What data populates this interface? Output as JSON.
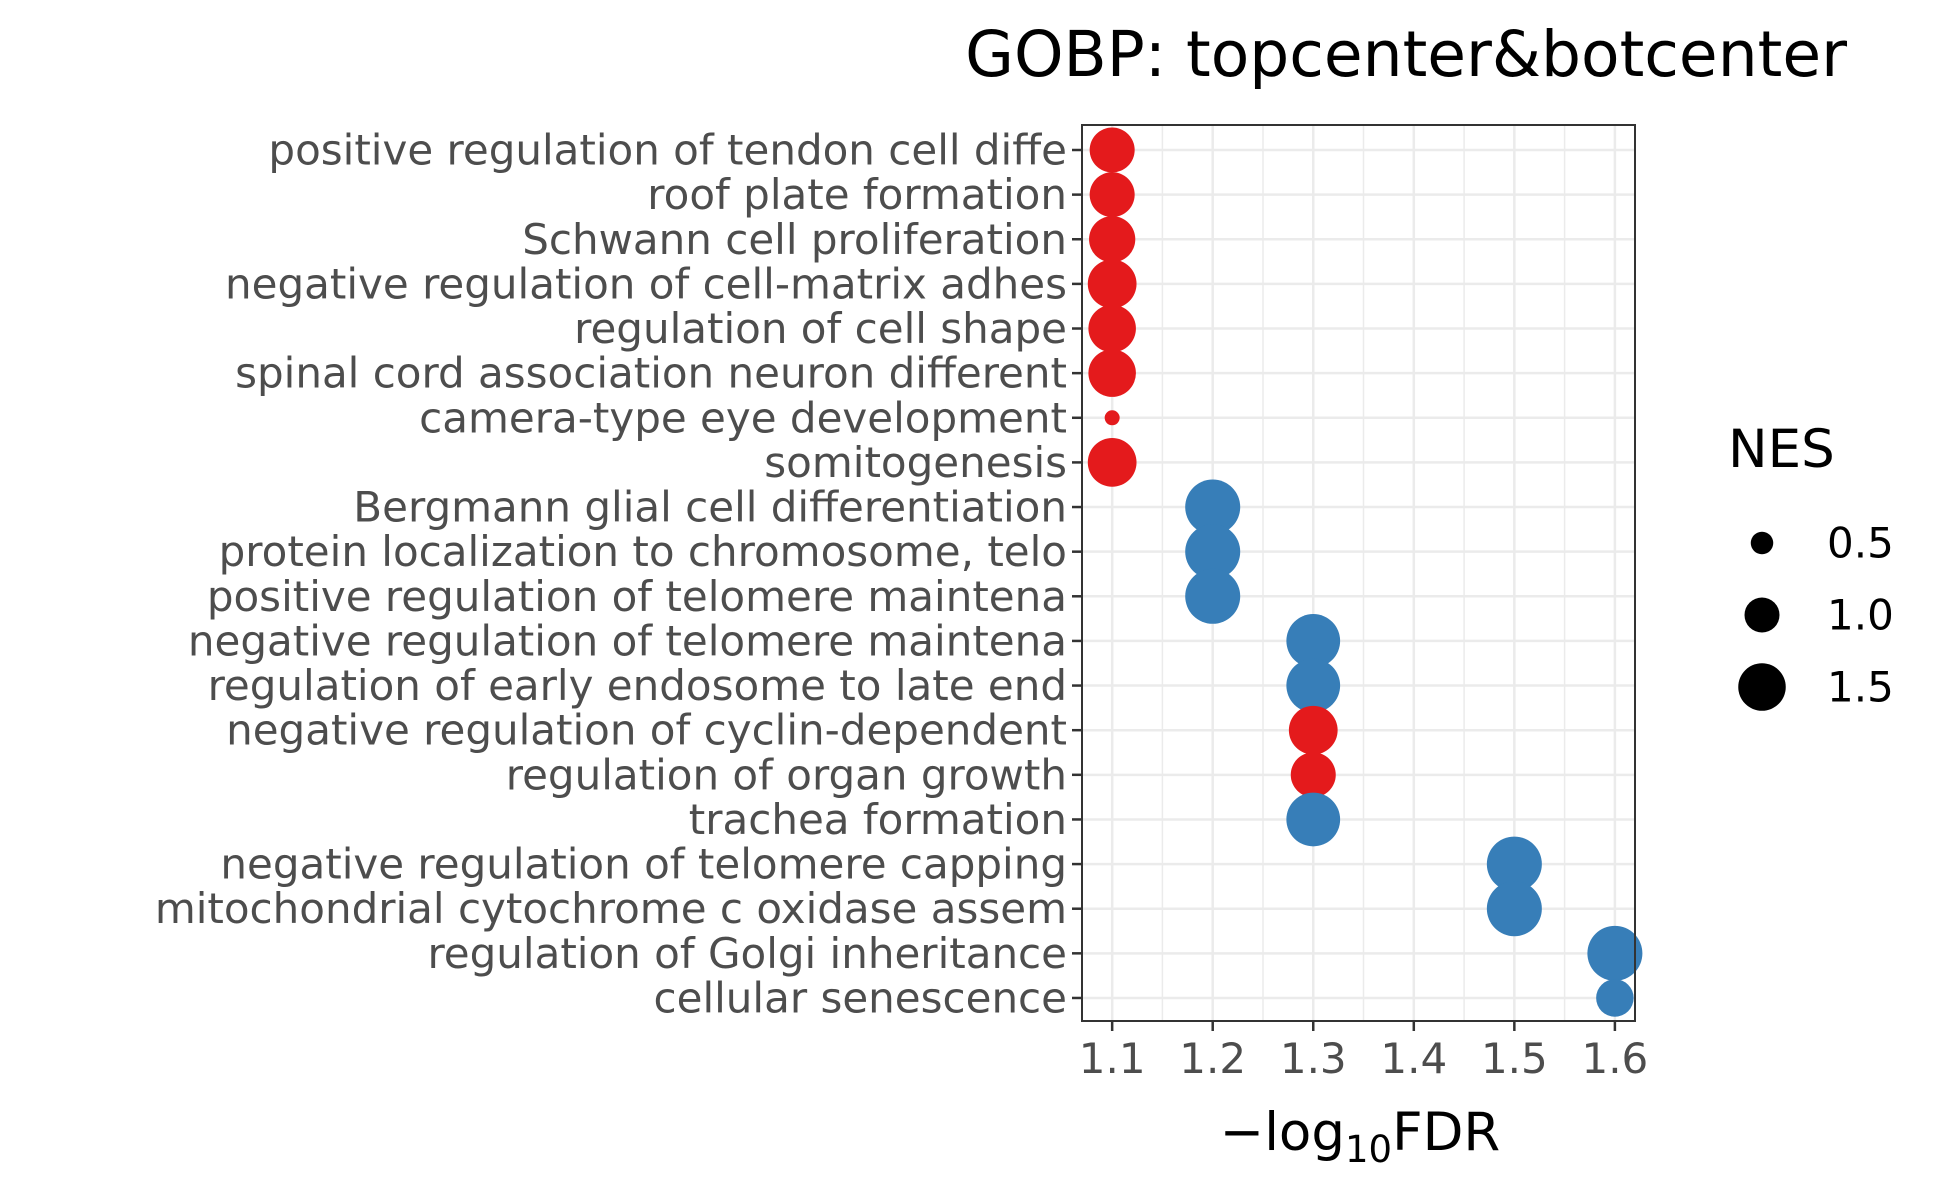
{
  "chart_data": {
    "type": "scatter",
    "title": "GOBP: topcenter&botcenter",
    "xlabel": {
      "prefix": "−log",
      "subscript": "10",
      "suffix": "FDR"
    },
    "ylabel": "",
    "xlim": [
      1.07,
      1.62
    ],
    "x_ticks": [
      "1.1",
      "1.2",
      "1.3",
      "1.4",
      "1.5",
      "1.6"
    ],
    "x_tick_values": [
      1.1,
      1.2,
      1.3,
      1.4,
      1.5,
      1.6
    ],
    "grid": true,
    "legend": {
      "title": "NES",
      "placement": "right",
      "entries": [
        {
          "label": "0.5",
          "nes": 0.5
        },
        {
          "label": "1.0",
          "nes": 1.0
        },
        {
          "label": "1.5",
          "nes": 1.5
        }
      ]
    },
    "colors": {
      "up": "#e41a1c",
      "down": "#377eb8"
    },
    "categories": [
      "positive regulation of tendon cell diffe",
      "roof plate formation",
      "Schwann cell proliferation",
      "negative regulation of cell-matrix adhes",
      "regulation of cell shape",
      "spinal cord association neuron different",
      "camera-type eye development",
      "somitogenesis",
      "Bergmann glial cell differentiation",
      "protein localization to chromosome, telo",
      "positive regulation of telomere maintena",
      "negative regulation of telomere maintena",
      "regulation of early endosome to late end",
      "negative regulation of cyclin-dependent ",
      "regulation of organ growth",
      "trachea formation",
      "negative regulation of telomere capping",
      "mitochondrial cytochrome c oxidase assem",
      "regulation of Golgi inheritance",
      "cellular senescence"
    ],
    "points": [
      {
        "x": 1.1,
        "nes": 1.4,
        "group": "up"
      },
      {
        "x": 1.1,
        "nes": 1.4,
        "group": "up"
      },
      {
        "x": 1.1,
        "nes": 1.45,
        "group": "up"
      },
      {
        "x": 1.1,
        "nes": 1.55,
        "group": "up"
      },
      {
        "x": 1.1,
        "nes": 1.5,
        "group": "up"
      },
      {
        "x": 1.1,
        "nes": 1.5,
        "group": "up"
      },
      {
        "x": 1.1,
        "nes": 0.2,
        "group": "up"
      },
      {
        "x": 1.1,
        "nes": 1.55,
        "group": "up"
      },
      {
        "x": 1.2,
        "nes": 1.8,
        "group": "down"
      },
      {
        "x": 1.2,
        "nes": 1.8,
        "group": "down"
      },
      {
        "x": 1.2,
        "nes": 1.8,
        "group": "down"
      },
      {
        "x": 1.3,
        "nes": 1.75,
        "group": "down"
      },
      {
        "x": 1.3,
        "nes": 1.75,
        "group": "down"
      },
      {
        "x": 1.3,
        "nes": 1.55,
        "group": "up"
      },
      {
        "x": 1.3,
        "nes": 1.4,
        "group": "up"
      },
      {
        "x": 1.3,
        "nes": 1.75,
        "group": "down"
      },
      {
        "x": 1.5,
        "nes": 1.8,
        "group": "down"
      },
      {
        "x": 1.5,
        "nes": 1.8,
        "group": "down"
      },
      {
        "x": 1.6,
        "nes": 1.8,
        "group": "down"
      },
      {
        "x": 1.6,
        "nes": 1.1,
        "group": "down"
      }
    ]
  }
}
